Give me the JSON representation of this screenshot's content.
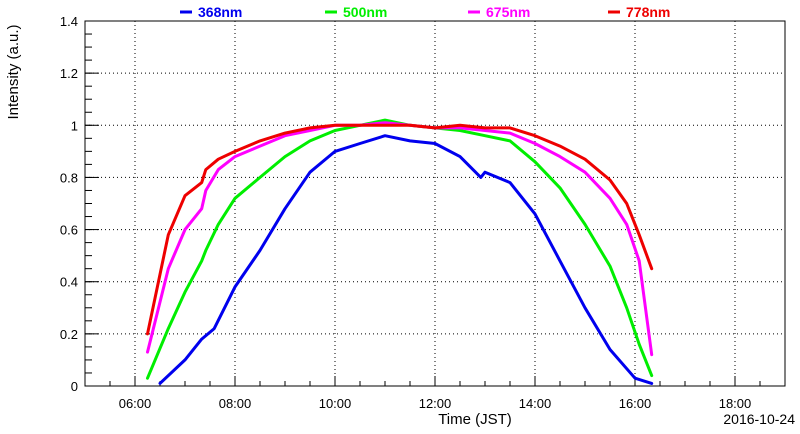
{
  "chart_data": {
    "type": "line",
    "title": "",
    "xlabel": "Time (JST)",
    "ylabel": "Intensity (a.u.)",
    "date_label": "2016-10-24",
    "xlim": [
      "05:00",
      "19:00"
    ],
    "ylim": [
      0,
      1.4
    ],
    "grid": true,
    "legend_position": "top",
    "x_ticks": [
      "06:00",
      "08:00",
      "10:00",
      "12:00",
      "14:00",
      "16:00",
      "18:00"
    ],
    "y_ticks": [
      "0",
      "0.2",
      "0.4",
      "0.6",
      "0.8",
      "1",
      "1.2",
      "1.4"
    ],
    "series": [
      {
        "name": "368nm",
        "color": "#0000ee",
        "x": [
          "06:30",
          "07:00",
          "07:20",
          "07:35",
          "08:00",
          "08:30",
          "09:00",
          "09:30",
          "10:00",
          "10:30",
          "11:00",
          "11:30",
          "12:00",
          "12:30",
          "12:55",
          "13:00",
          "13:30",
          "14:00",
          "14:30",
          "15:00",
          "15:30",
          "16:00",
          "16:20"
        ],
        "y": [
          0.01,
          0.1,
          0.18,
          0.22,
          0.38,
          0.52,
          0.68,
          0.82,
          0.9,
          0.93,
          0.96,
          0.94,
          0.93,
          0.88,
          0.8,
          0.82,
          0.78,
          0.66,
          0.48,
          0.3,
          0.14,
          0.03,
          0.01
        ]
      },
      {
        "name": "500nm",
        "color": "#00ee00",
        "x": [
          "06:15",
          "06:40",
          "07:00",
          "07:20",
          "07:25",
          "07:40",
          "08:00",
          "08:30",
          "09:00",
          "09:30",
          "10:00",
          "10:30",
          "11:00",
          "11:30",
          "12:00",
          "12:30",
          "13:00",
          "13:30",
          "14:00",
          "14:30",
          "15:00",
          "15:30",
          "15:50",
          "16:05",
          "16:20"
        ],
        "y": [
          0.03,
          0.22,
          0.36,
          0.48,
          0.52,
          0.62,
          0.72,
          0.8,
          0.88,
          0.94,
          0.98,
          1.0,
          1.02,
          1.0,
          0.99,
          0.98,
          0.96,
          0.94,
          0.86,
          0.76,
          0.62,
          0.46,
          0.3,
          0.16,
          0.04
        ]
      },
      {
        "name": "675nm",
        "color": "#ff00ff",
        "x": [
          "06:15",
          "06:40",
          "07:00",
          "07:20",
          "07:25",
          "07:40",
          "08:00",
          "08:30",
          "09:00",
          "09:30",
          "10:00",
          "10:30",
          "11:00",
          "11:30",
          "12:00",
          "12:30",
          "13:00",
          "13:30",
          "14:00",
          "14:30",
          "15:00",
          "15:30",
          "15:50",
          "16:05",
          "16:20"
        ],
        "y": [
          0.13,
          0.45,
          0.6,
          0.68,
          0.75,
          0.83,
          0.88,
          0.92,
          0.96,
          0.98,
          1.0,
          1.0,
          1.01,
          1.0,
          0.99,
          0.99,
          0.98,
          0.97,
          0.93,
          0.88,
          0.82,
          0.72,
          0.62,
          0.48,
          0.12
        ]
      },
      {
        "name": "778nm",
        "color": "#ee0000",
        "x": [
          "06:15",
          "06:40",
          "07:00",
          "07:20",
          "07:25",
          "07:40",
          "08:00",
          "08:30",
          "09:00",
          "09:30",
          "10:00",
          "10:30",
          "11:00",
          "11:30",
          "12:00",
          "12:30",
          "13:00",
          "13:30",
          "14:00",
          "14:30",
          "15:00",
          "15:30",
          "15:50",
          "16:05",
          "16:20"
        ],
        "y": [
          0.2,
          0.58,
          0.73,
          0.78,
          0.83,
          0.87,
          0.9,
          0.94,
          0.97,
          0.99,
          1.0,
          1.0,
          1.0,
          1.0,
          0.99,
          1.0,
          0.99,
          0.99,
          0.96,
          0.92,
          0.87,
          0.79,
          0.7,
          0.58,
          0.45
        ]
      }
    ]
  }
}
